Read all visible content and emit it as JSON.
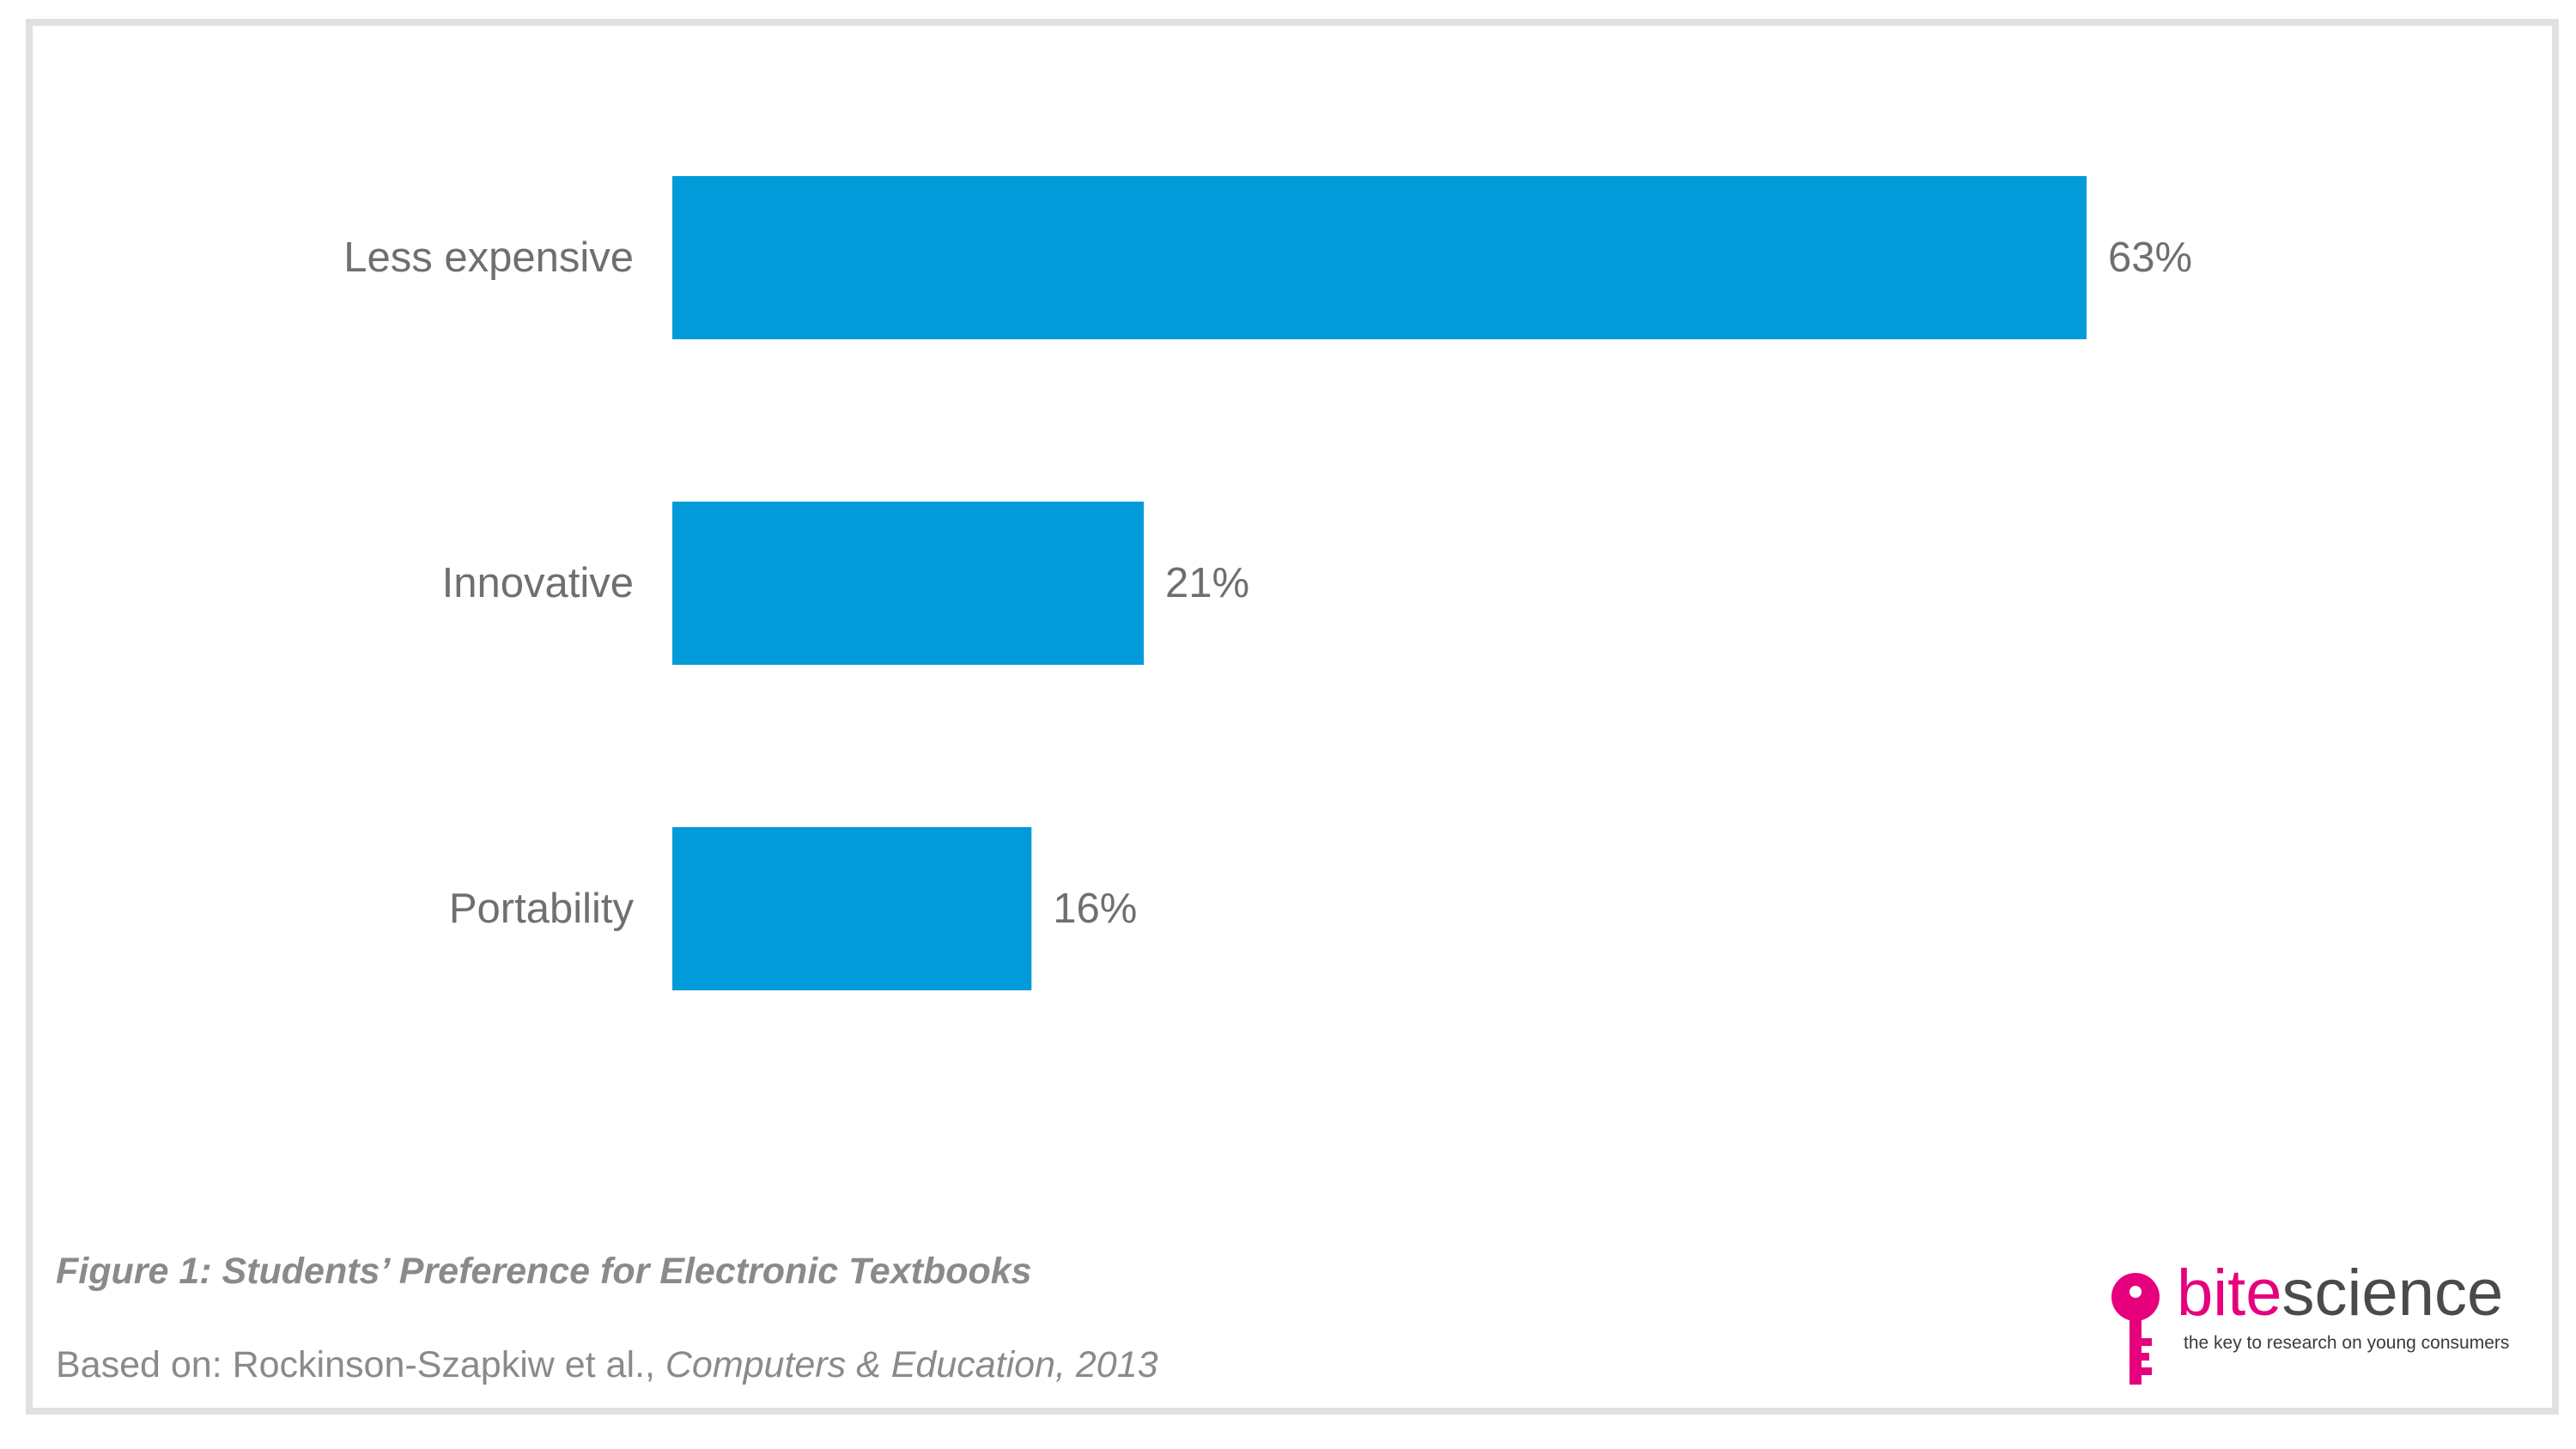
{
  "chart_data": {
    "type": "bar",
    "orientation": "horizontal",
    "categories": [
      "Less expensive",
      "Innovative",
      "Portability"
    ],
    "values": [
      63,
      21,
      16
    ],
    "value_labels": [
      "63%",
      "21%",
      "16%"
    ],
    "unit": "%",
    "xlim": [
      0,
      63
    ],
    "bar_color": "#009bd8",
    "grid": false,
    "legend": "none"
  },
  "caption": "Figure 1: Students’ Preference for Electronic Textbooks",
  "source": {
    "prefix": "Based on: Rockinson-Szapkiw et al., ",
    "journal": "Computers & Education, 2013"
  },
  "logo": {
    "word_part1": "bite",
    "word_part2": "science",
    "tagline": "the key to research on young consumers",
    "brand_color": "#e6007e",
    "icon": "key-icon"
  }
}
